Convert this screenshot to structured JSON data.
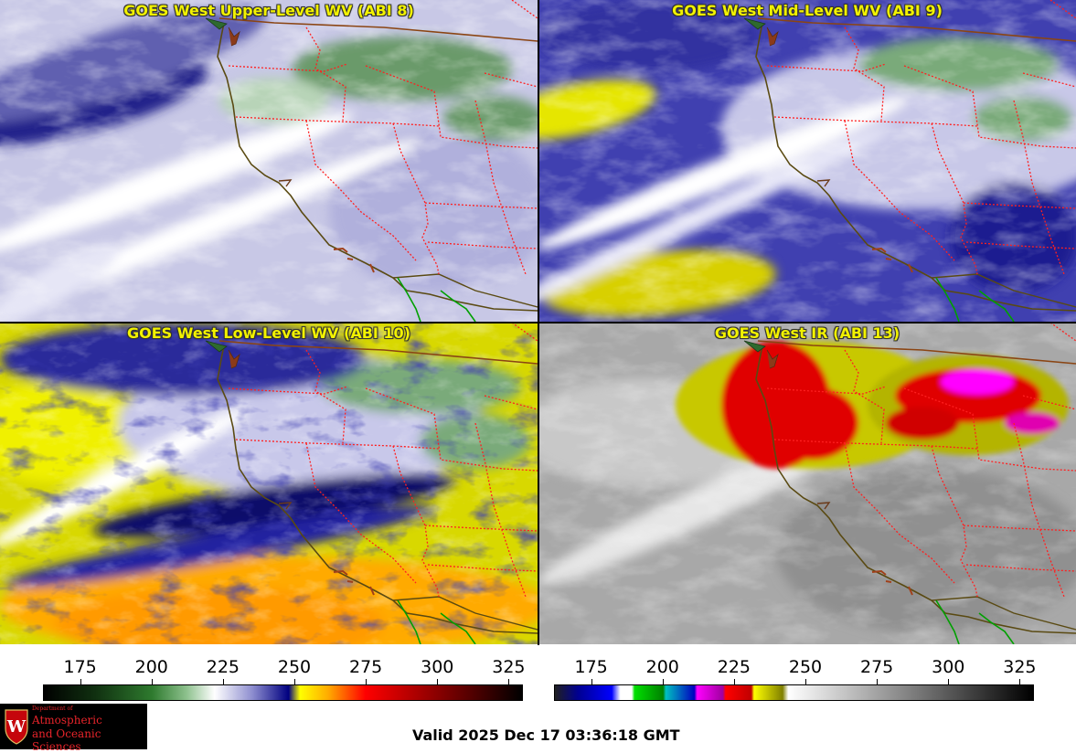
{
  "panels": [
    {
      "id": "upper",
      "title": "GOES West Upper-Level WV (ABI 8)"
    },
    {
      "id": "mid",
      "title": "GOES West Mid-Level WV (ABI 9)"
    },
    {
      "id": "low",
      "title": "GOES West Low-Level WV (ABI 10)"
    },
    {
      "id": "ir",
      "title": "GOES West IR (ABI 13)"
    }
  ],
  "colorbars": {
    "wv": {
      "ticks": [
        "175",
        "200",
        "225",
        "250",
        "275",
        "300",
        "325"
      ],
      "range": [
        162,
        330
      ],
      "scale": [
        [
          162,
          "#000000"
        ],
        [
          180,
          "#103010"
        ],
        [
          200,
          "#2e7a2e"
        ],
        [
          212,
          "#8cc08c"
        ],
        [
          222,
          "#ffffff"
        ],
        [
          235,
          "#9090d0"
        ],
        [
          248,
          "#000080"
        ],
        [
          252,
          "#ffff00"
        ],
        [
          262,
          "#ffaa00"
        ],
        [
          275,
          "#ff0000"
        ],
        [
          300,
          "#8b0000"
        ],
        [
          330,
          "#000000"
        ]
      ]
    },
    "ir": {
      "ticks": [
        "175",
        "200",
        "225",
        "250",
        "275",
        "300",
        "325"
      ],
      "range": [
        162,
        330
      ],
      "scale": [
        [
          162,
          "#202020"
        ],
        [
          170,
          "#000090"
        ],
        [
          182,
          "#0000ff"
        ],
        [
          185,
          "#ffffff"
        ],
        [
          189,
          "#ffffff"
        ],
        [
          190,
          "#00e000"
        ],
        [
          200,
          "#008000"
        ],
        [
          201,
          "#00c0c0"
        ],
        [
          211,
          "#0000c0"
        ],
        [
          212,
          "#ff00ff"
        ],
        [
          221,
          "#a000a0"
        ],
        [
          222,
          "#ff0000"
        ],
        [
          231,
          "#c00000"
        ],
        [
          232,
          "#ffff00"
        ],
        [
          242,
          "#808000"
        ],
        [
          244,
          "#ffffff"
        ],
        [
          330,
          "#000000"
        ]
      ]
    }
  },
  "footer": {
    "valid_time": "Valid 2025 Dec 17 03:36:18 GMT",
    "logo_line1": "Department of",
    "logo_line2": "Atmospheric",
    "logo_line3": "and Oceanic Sciences"
  },
  "colors": {
    "title_text": "#f2f200",
    "state_border": "#ff2020",
    "coastline": "#6b5a1a",
    "mexico_coast": "#00a000"
  }
}
